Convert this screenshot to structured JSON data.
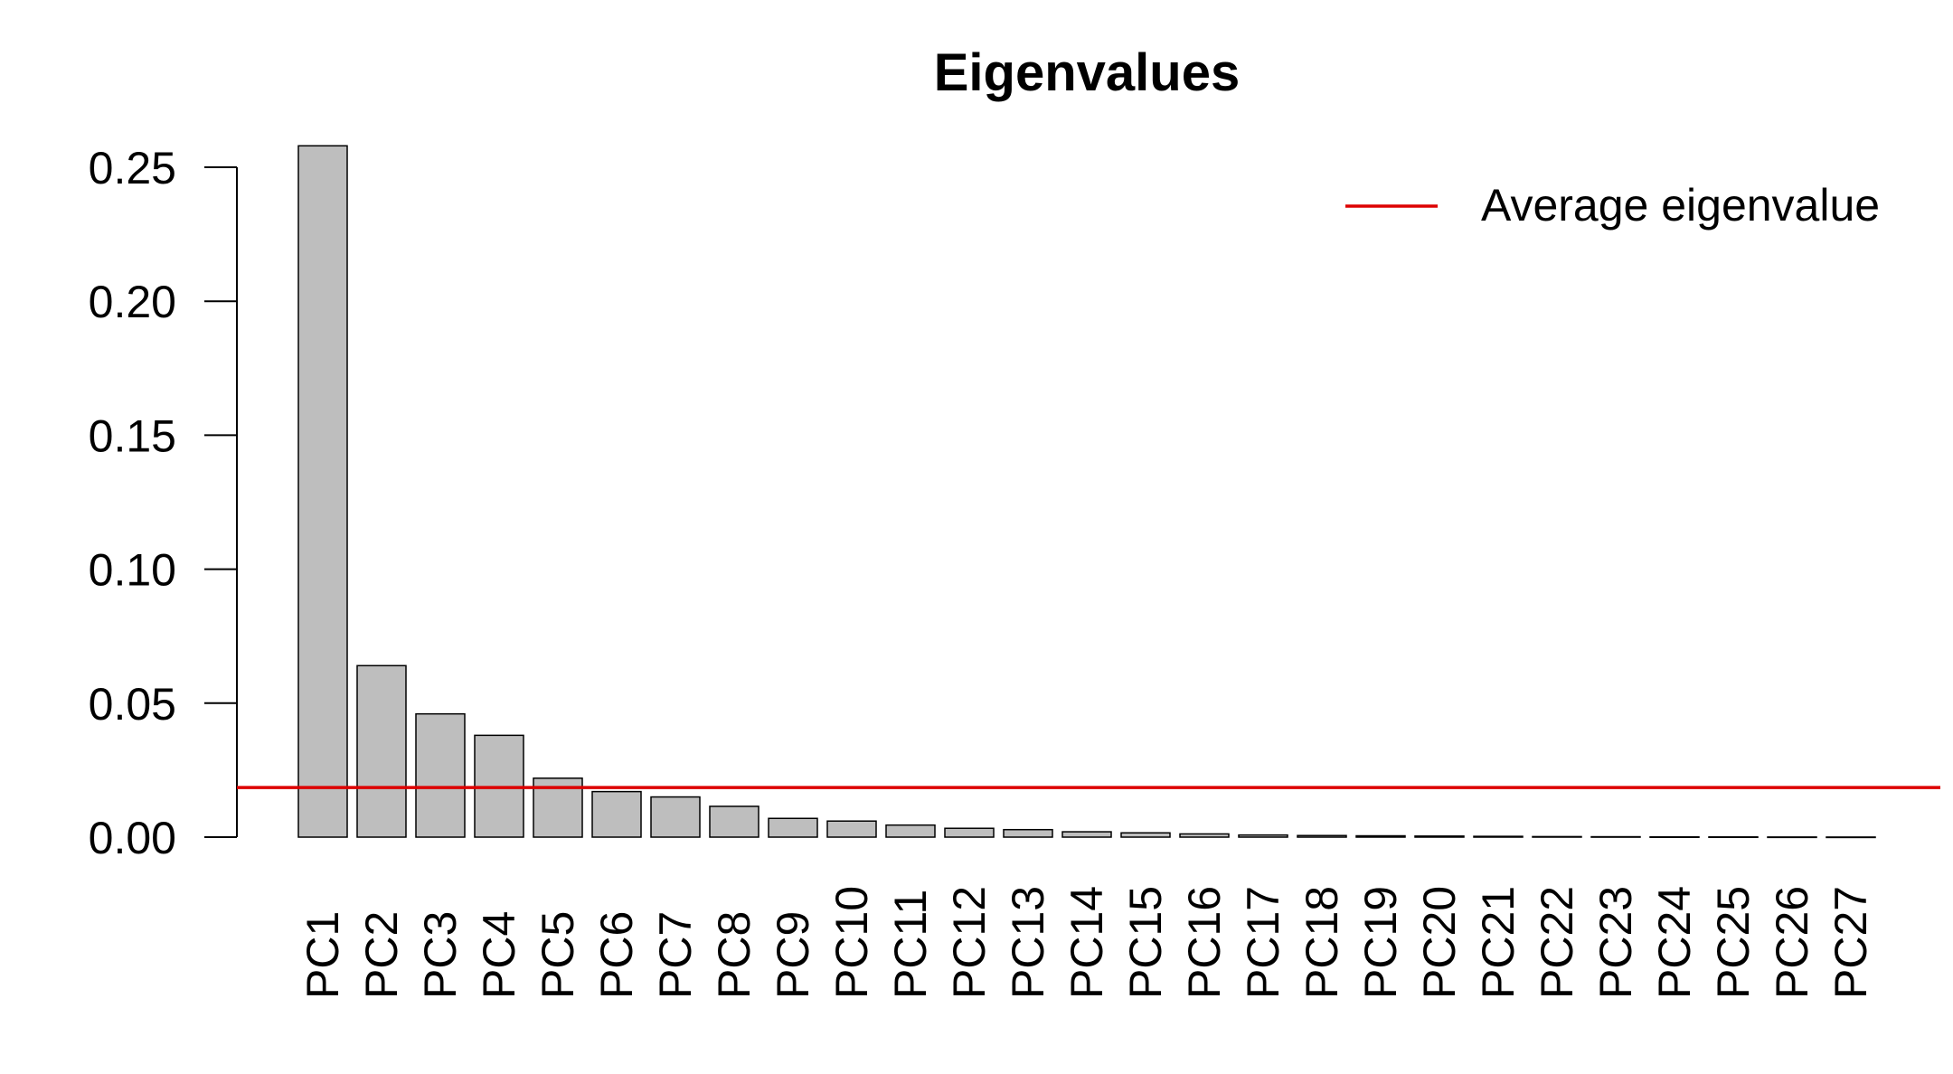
{
  "chart_data": {
    "type": "bar",
    "title": "Eigenvalues",
    "xlabel": "",
    "ylabel": "",
    "ylim": [
      0,
      0.25
    ],
    "yticks": [
      "0.00",
      "0.05",
      "0.10",
      "0.15",
      "0.20",
      "0.25"
    ],
    "categories": [
      "PC1",
      "PC2",
      "PC3",
      "PC4",
      "PC5",
      "PC6",
      "PC7",
      "PC8",
      "PC9",
      "PC10",
      "PC11",
      "PC12",
      "PC13",
      "PC14",
      "PC15",
      "PC16",
      "PC17",
      "PC18",
      "PC19",
      "PC20",
      "PC21",
      "PC22",
      "PC23",
      "PC24",
      "PC25",
      "PC26",
      "PC27"
    ],
    "values": [
      0.258,
      0.064,
      0.046,
      0.038,
      0.022,
      0.017,
      0.015,
      0.0115,
      0.007,
      0.006,
      0.0045,
      0.0033,
      0.0028,
      0.002,
      0.0016,
      0.0012,
      0.0008,
      0.0006,
      0.0005,
      0.0004,
      0.0003,
      0.0002,
      0.00015,
      0.0001,
      8e-05,
      5e-05,
      3e-05
    ],
    "bar_color": "#bebebe",
    "bar_edge_color": "#000000",
    "reference_line": {
      "label": "Average eigenvalue",
      "value": 0.0185,
      "color": "#dd0000"
    },
    "legend": {
      "position": "top-right",
      "entries": [
        "Average eigenvalue"
      ]
    },
    "grid": false
  }
}
